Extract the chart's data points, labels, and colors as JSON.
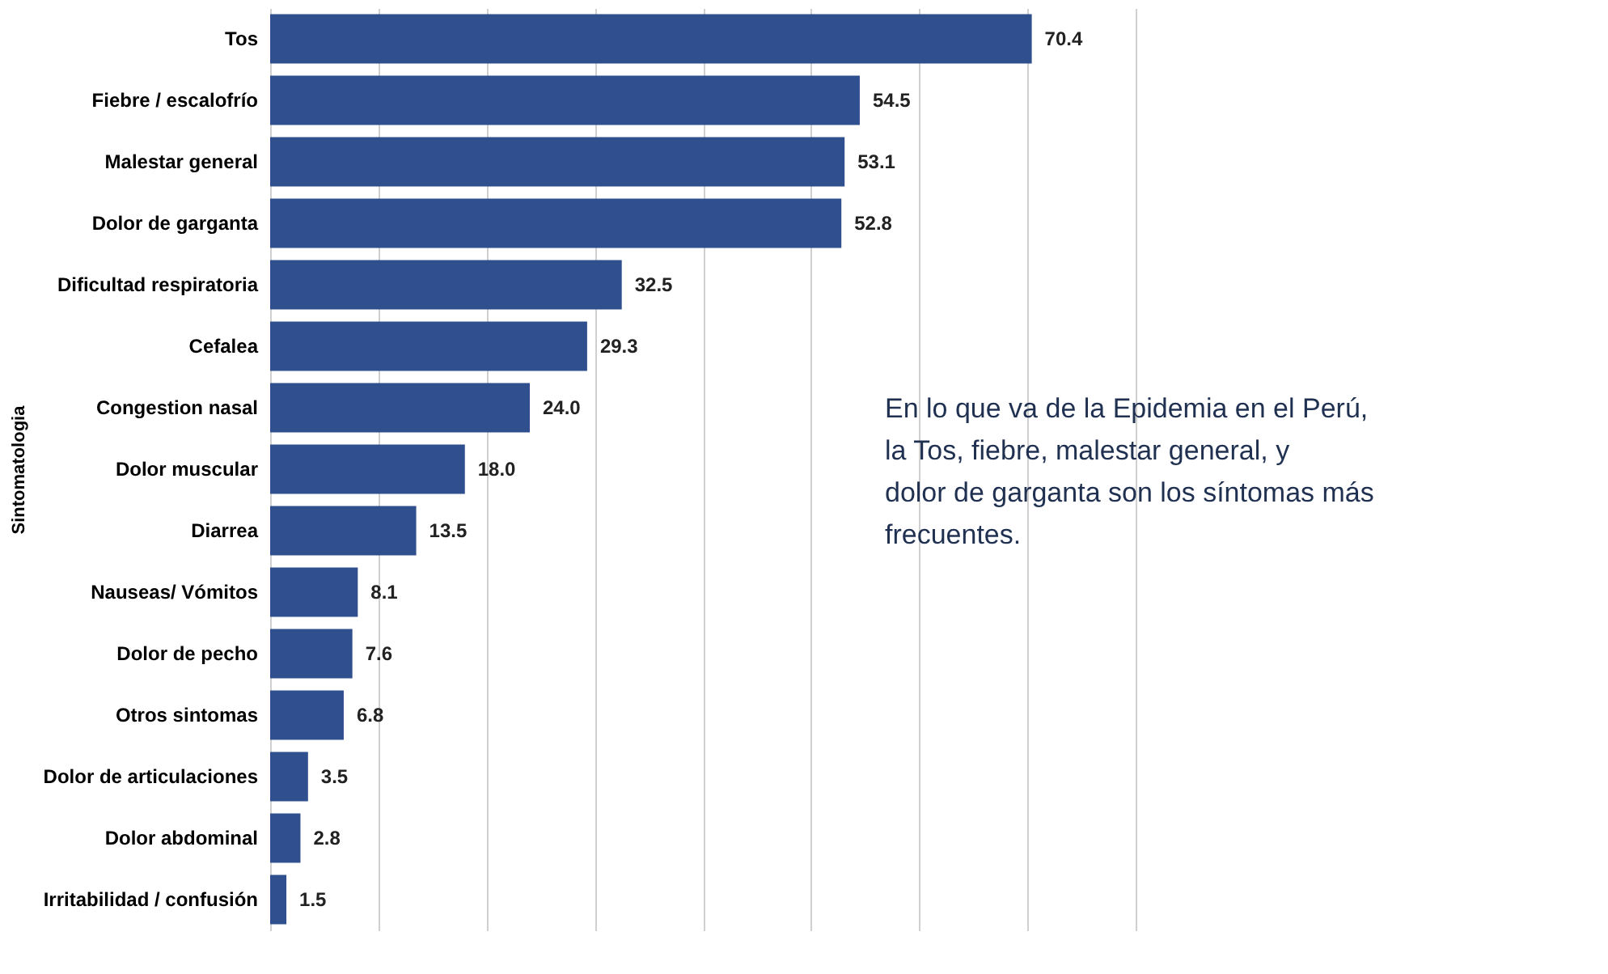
{
  "chart_data": {
    "type": "bar",
    "orientation": "horizontal",
    "ylabel": "Sintomatologia",
    "categories": [
      "Tos",
      "Fiebre / escalofrío",
      "Malestar general",
      "Dolor de garganta",
      "Dificultad respiratoria",
      "Cefalea",
      "Congestion nasal",
      "Dolor muscular",
      "Diarrea",
      "Nauseas/ Vómitos",
      "Dolor de pecho",
      "Otros sintomas",
      "Dolor de articulaciones",
      "Dolor abdominal",
      "Irritabilidad / confusión"
    ],
    "values": [
      70.4,
      54.5,
      53.1,
      52.8,
      32.5,
      29.3,
      24.0,
      18.0,
      13.5,
      8.1,
      7.6,
      6.8,
      3.5,
      2.8,
      1.5
    ],
    "value_labels": [
      "70.4",
      "54.5",
      "53.1",
      "52.8",
      "32.5",
      "29.3",
      "24.0",
      "18.0",
      "13.5",
      "8.1",
      "7.6",
      "6.8",
      "3.5",
      "2.8",
      "1.5"
    ],
    "color": "#2f4f8f",
    "xlim": [
      0,
      80
    ],
    "xticks": [
      0,
      10,
      20,
      30,
      40,
      50,
      60,
      70,
      80
    ],
    "grid": "x",
    "tick_labels": "y",
    "annotations": [
      "En lo que va de la Epidemia en el Perú, la Tos, fiebre, malestar general, y dolor de garganta son los síntomas más frecuentes."
    ]
  }
}
